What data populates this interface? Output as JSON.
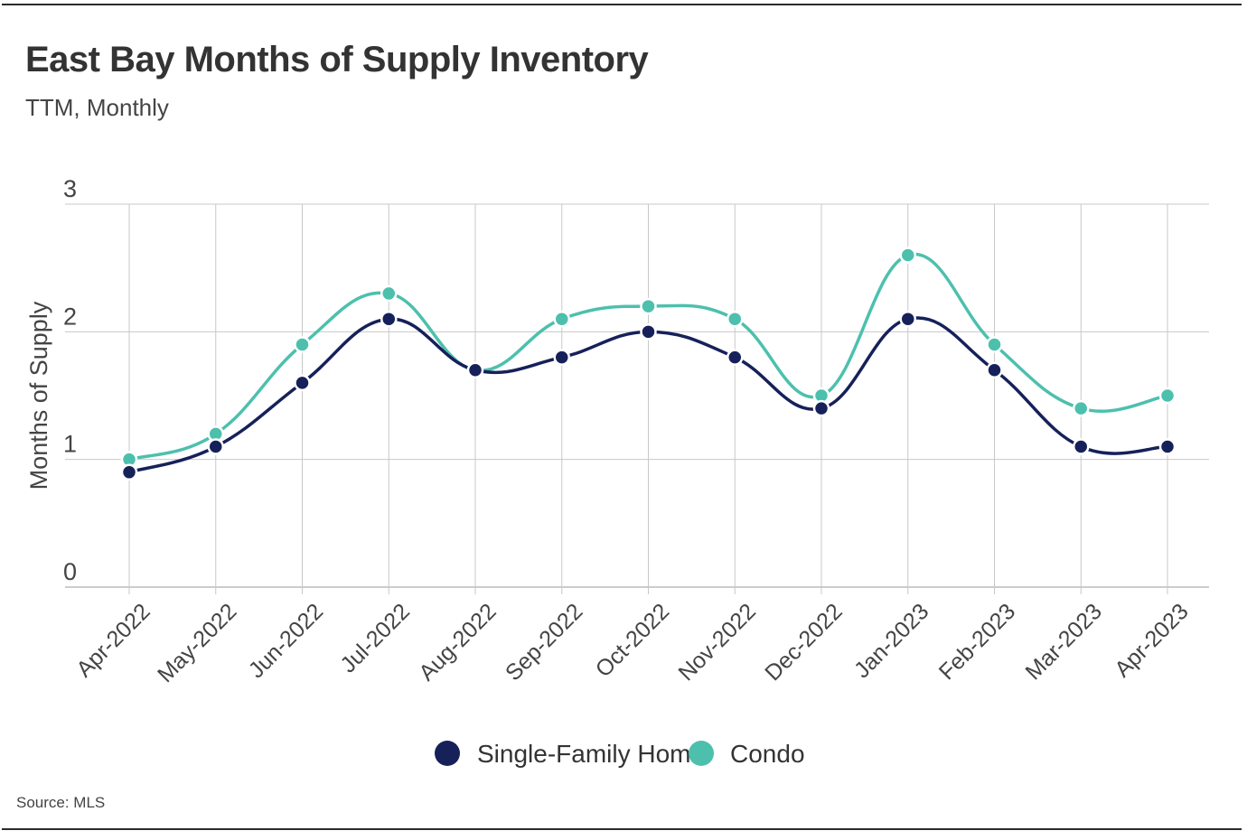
{
  "header": {
    "title": "East Bay Months of Supply Inventory",
    "subtitle": "TTM, Monthly"
  },
  "footer": {
    "source": "Source:  MLS"
  },
  "colors": {
    "single_family": "#16215a",
    "condo": "#4cc0ad",
    "grid": "#c8c8c8",
    "axis_text": "#444444"
  },
  "chart_data": {
    "type": "line",
    "title": "East Bay Months of Supply Inventory",
    "subtitle": "TTM, Monthly",
    "xlabel": "",
    "ylabel": "Months of Supply",
    "ylim": [
      0,
      3
    ],
    "yticks": [
      0,
      1,
      2,
      3
    ],
    "grid": true,
    "legend_position": "bottom-center",
    "smooth": true,
    "categories": [
      "Apr-2022",
      "May-2022",
      "Jun-2022",
      "Jul-2022",
      "Aug-2022",
      "Sep-2022",
      "Oct-2022",
      "Nov-2022",
      "Dec-2022",
      "Jan-2023",
      "Feb-2023",
      "Mar-2023",
      "Apr-2023"
    ],
    "series": [
      {
        "name": "Single-Family Home",
        "color": "#16215a",
        "values": [
          0.9,
          1.1,
          1.6,
          2.1,
          1.7,
          1.8,
          2.0,
          1.8,
          1.4,
          2.1,
          1.7,
          1.1,
          1.1
        ]
      },
      {
        "name": "Condo",
        "color": "#4cc0ad",
        "values": [
          1.0,
          1.2,
          1.9,
          2.3,
          1.7,
          2.1,
          2.2,
          2.1,
          1.5,
          2.6,
          1.9,
          1.4,
          1.5
        ]
      }
    ]
  }
}
